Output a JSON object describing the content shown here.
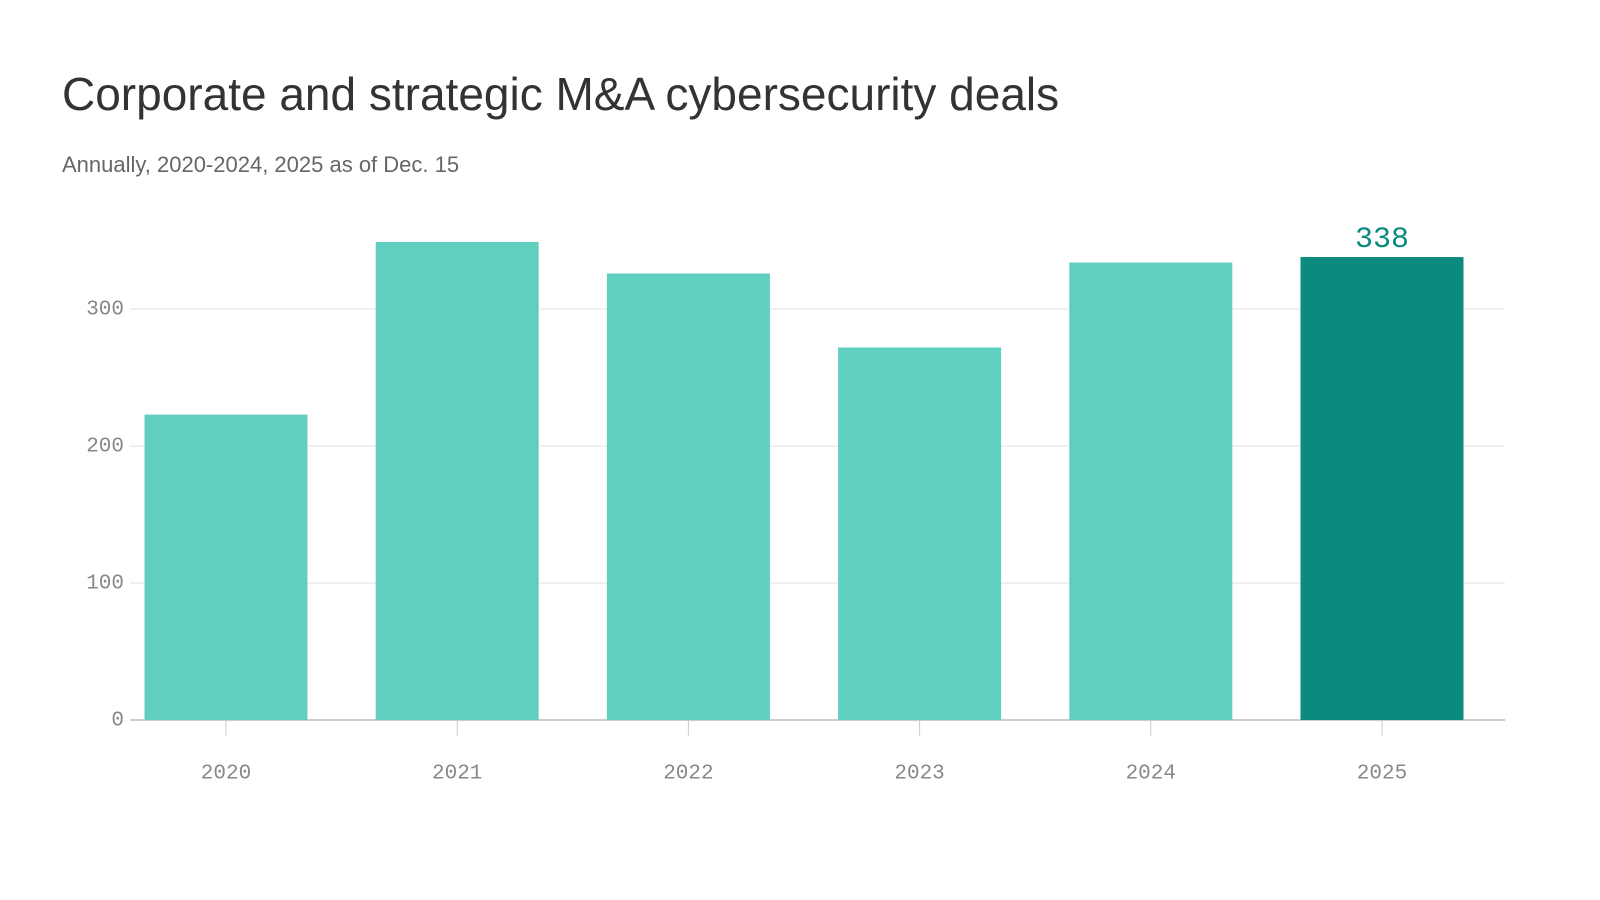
{
  "chart_data": {
    "type": "bar",
    "title": "Corporate and strategic M&A cybersecurity deals",
    "subtitle": "Annually, 2020-2024, 2025 as of Dec. 15",
    "categories": [
      "2020",
      "2021",
      "2022",
      "2023",
      "2024",
      "2025"
    ],
    "values": [
      223,
      349,
      326,
      272,
      334,
      338
    ],
    "colors": [
      "#61cfc0",
      "#61cfc0",
      "#61cfc0",
      "#61cfc0",
      "#61cfc0",
      "#0b8a80"
    ],
    "label_color": "#0b8a80",
    "ylim": [
      0,
      350
    ],
    "yticks": [
      0,
      100,
      200,
      300
    ],
    "grid": true
  }
}
